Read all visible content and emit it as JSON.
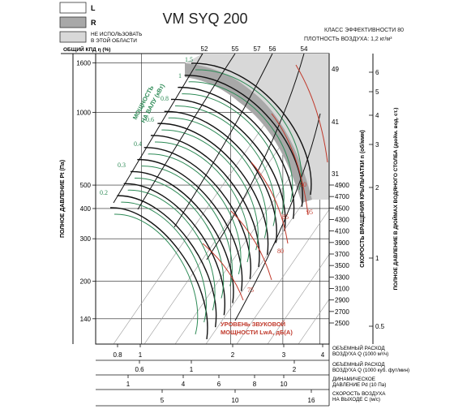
{
  "header": {
    "legend_L": "L",
    "legend_R": "R",
    "legend_na_line1": "НЕ ИСПОЛЬЗОВАТЬ",
    "legend_na_line2": "В ЭТОЙ ОБЛАСТИ",
    "model": "VM SYQ 200",
    "eff_class": "КЛАСС ЭФФЕКТИВНОСТИ 80",
    "density": "ПЛОТНОСТЬ ВОЗДУХА: 1,2 кг/м³"
  },
  "colors": {
    "green": "#2e8b57",
    "red": "#c0392b",
    "black": "#111111",
    "light_gray": "#d8d8d8",
    "dark_gray": "#a8a8a8"
  },
  "chart_data": {
    "type": "line",
    "title": "VM SYQ 200",
    "efficiency_axis_title": "ОБЩИЙ КПД η (%)",
    "efficiency_ticks": [
      "52",
      "55",
      "57",
      "56",
      "54"
    ],
    "y_left": {
      "label": "ПОЛНОЕ ДАВЛЕНИЕ Pt (Па)",
      "scale": "log",
      "range": [
        110,
        1750
      ],
      "ticks": [
        140,
        200,
        300,
        400,
        500,
        1000,
        1600
      ]
    },
    "y_rpm": {
      "label": "СКОРОСТЬ ВРАЩЕНИЯ КРЫЛЬЧАТКИ n (об/мин)",
      "ticks": [
        2500,
        2700,
        2900,
        3100,
        3300,
        3500,
        3700,
        3900,
        4100,
        4300,
        4500,
        4700,
        4900
      ]
    },
    "y_right": {
      "label": "ПОЛНОЕ ДАВЛЕНИЕ В ДЮЙМАХ ВОДЯНОГО СТОЛБА (дюйм. вод. ст.)",
      "ticks": [
        "0.5",
        "1",
        "2",
        "3",
        "4",
        "5",
        "6"
      ]
    },
    "bottom_axes": [
      {
        "label_line1": "ОБЪЕМНЫЙ РАСХОД",
        "label_line2": "ВОЗДУХА Q (1000 м³/ч)",
        "ticks": [
          "0.8",
          "1",
          "2",
          "3",
          "4"
        ]
      },
      {
        "label_line1": "ОБЪЕМНЫЙ РАСХОД",
        "label_line2": "ВОЗДУХА Q (1000 куб. фут/мин)",
        "ticks": [
          "0.6",
          "1",
          "2"
        ]
      },
      {
        "label_line1": "ДИНАМИЧЕСКОЕ",
        "label_line2": "ДАВЛЕНИЕ Pd (10 Па)",
        "ticks": [
          "1",
          "4",
          "6",
          "8",
          "10"
        ]
      },
      {
        "label_line1": "СКОРОСТЬ ВОЗДУХА",
        "label_line2": "НА ВЫХОДЕ С (м/с)",
        "ticks": [
          "5",
          "10",
          "16"
        ]
      }
    ],
    "power_axis_label_line1": "МОЩНОСТЬ",
    "power_axis_label_line2": "НА ВАЛУ (кВт)",
    "power_labels": [
      "0.2",
      "0.3",
      "0.4",
      "0.6",
      "0.8",
      "1",
      "1.5"
    ],
    "sound_axis_label_line1": "УРОВЕНЬ ЗВУКОВОЙ",
    "sound_axis_label_line2": "МОЩНОСТИ LwA, дБ(А)",
    "sound_labels": [
      "75",
      "80",
      "85",
      "90",
      "95"
    ],
    "upper_rpm_labels": [
      "31",
      "41",
      "49"
    ],
    "fan_curves_rpm": [
      2500,
      2700,
      2900,
      3100,
      3300,
      3500,
      3700,
      3900,
      4100,
      4300,
      4500,
      4700,
      4900
    ],
    "grid": true
  }
}
